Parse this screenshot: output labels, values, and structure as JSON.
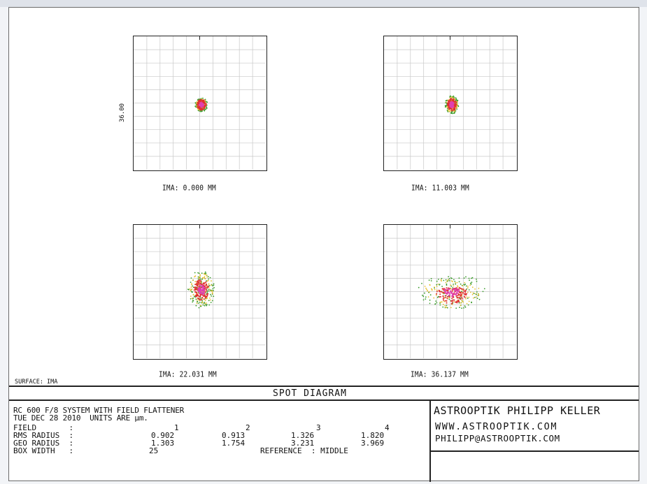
{
  "diagram": {
    "title": "SPOT DIAGRAM",
    "surface_label": "SURFACE: IMA",
    "scale_label": "36.00",
    "fields": [
      {
        "caption": "IMA: 0.000 MM"
      },
      {
        "caption": "IMA: 11.003 MM"
      },
      {
        "caption": "IMA: 22.031 MM"
      },
      {
        "caption": "IMA: 36.137 MM"
      }
    ],
    "colors": {
      "ray1": "#3a9b2a",
      "ray2": "#e03030",
      "ray3": "#e8c030",
      "ray4": "#e040b0",
      "grid": "#c8c8c8"
    }
  },
  "info": {
    "system_line": "RC 600 F/8 SYSTEM WITH FIELD FLATTENER",
    "date_line": "TUE DEC 28 2010  UNITS ARE µm.",
    "rows": [
      {
        "label": "FIELD       :",
        "v1": "1",
        "v2": "2",
        "v3": "3",
        "v4": "4"
      },
      {
        "label": "RMS RADIUS  :",
        "v1": "0.902",
        "v2": "0.913",
        "v3": "1.326",
        "v4": "1.820"
      },
      {
        "label": "GEO RADIUS  :",
        "v1": "1.303",
        "v2": "1.754",
        "v3": "3.231",
        "v4": "3.969"
      }
    ],
    "box_width_label": "BOX WIDTH   :",
    "box_width_value": "25",
    "reference": "REFERENCE  : MIDDLE"
  },
  "company": {
    "name": "ASTROOPTIK PHILIPP KELLER",
    "web": "WWW.ASTROOPTIK.COM",
    "email": "PHILIPP@ASTROOPTIK.COM"
  }
}
